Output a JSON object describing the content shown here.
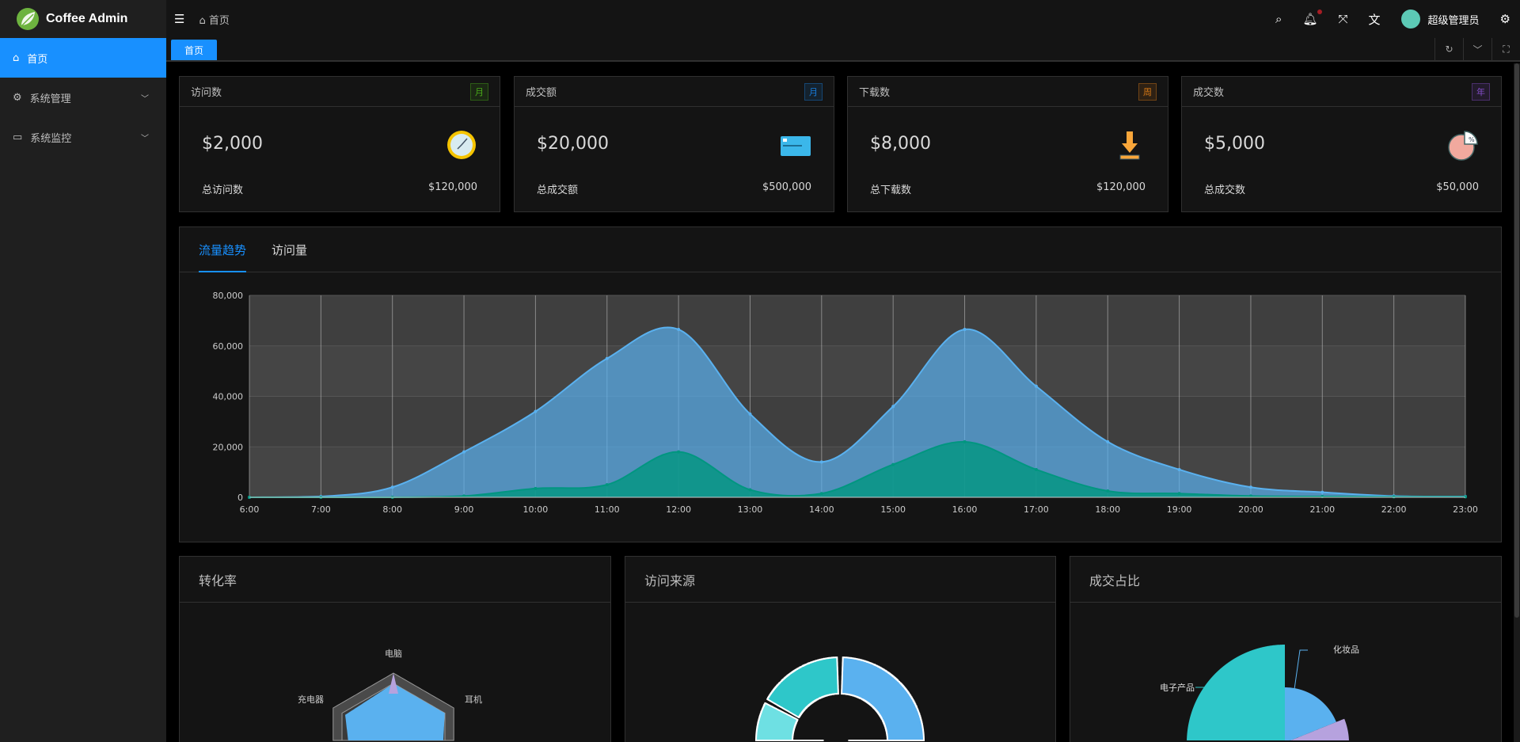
{
  "app": {
    "title": "Coffee Admin"
  },
  "sidebar": {
    "items": [
      {
        "label": "首页",
        "icon": "home-icon",
        "active": true
      },
      {
        "label": "系统管理",
        "icon": "gear-icon"
      },
      {
        "label": "系统监控",
        "icon": "monitor-icon"
      }
    ]
  },
  "header": {
    "breadcrumb": "首页",
    "user": "超级管理员",
    "has_notification": true
  },
  "tabs": [
    {
      "label": "首页",
      "active": true
    }
  ],
  "stats": [
    {
      "title": "访问数",
      "badge": "月",
      "badge_color": "#49aa19",
      "value": "$2,000",
      "icon": "clock-icon",
      "total_label": "总访问数",
      "total": "$120,000"
    },
    {
      "title": "成交额",
      "badge": "月",
      "badge_color": "#177ddc",
      "value": "$20,000",
      "icon": "credit-card-icon",
      "total_label": "总成交额",
      "total": "$500,000"
    },
    {
      "title": "下载数",
      "badge": "周",
      "badge_color": "#d87a16",
      "value": "$8,000",
      "icon": "download-icon",
      "total_label": "总下载数",
      "total": "$120,000"
    },
    {
      "title": "成交数",
      "badge": "年",
      "badge_color": "#854eca",
      "value": "$5,000",
      "icon": "pie-percent-icon",
      "total_label": "总成交数",
      "total": "$50,000"
    }
  ],
  "traffic": {
    "tabs": [
      "流量趋势",
      "访问量"
    ],
    "active_tab": 0
  },
  "chart_data": {
    "type": "area",
    "x": [
      "6:00",
      "7:00",
      "8:00",
      "9:00",
      "10:00",
      "11:00",
      "12:00",
      "13:00",
      "14:00",
      "15:00",
      "16:00",
      "17:00",
      "18:00",
      "19:00",
      "20:00",
      "21:00",
      "22:00",
      "23:00"
    ],
    "yticks": [
      "0",
      "20,000",
      "40,000",
      "60,000",
      "80,000"
    ],
    "ylim": [
      0,
      80000
    ],
    "grid": true,
    "series": [
      {
        "color": "#5ab1ef",
        "values": [
          0,
          300,
          4000,
          18000,
          34000,
          55000,
          66500,
          33000,
          14000,
          36000,
          66500,
          44000,
          22000,
          11000,
          4000,
          2000,
          500,
          300
        ]
      },
      {
        "color": "#019680",
        "values": [
          0,
          0,
          0,
          500,
          3500,
          5000,
          18000,
          3000,
          1500,
          13000,
          22000,
          11000,
          2500,
          1500,
          500,
          300,
          200,
          200
        ]
      }
    ]
  },
  "bottom": {
    "radar": {
      "title": "转化率",
      "labels": [
        "电脑",
        "耳机",
        "充电器"
      ]
    },
    "source": {
      "title": "访问来源"
    },
    "deal": {
      "title": "成交占比",
      "labels": [
        "化妆品",
        "电子产品"
      ]
    }
  }
}
